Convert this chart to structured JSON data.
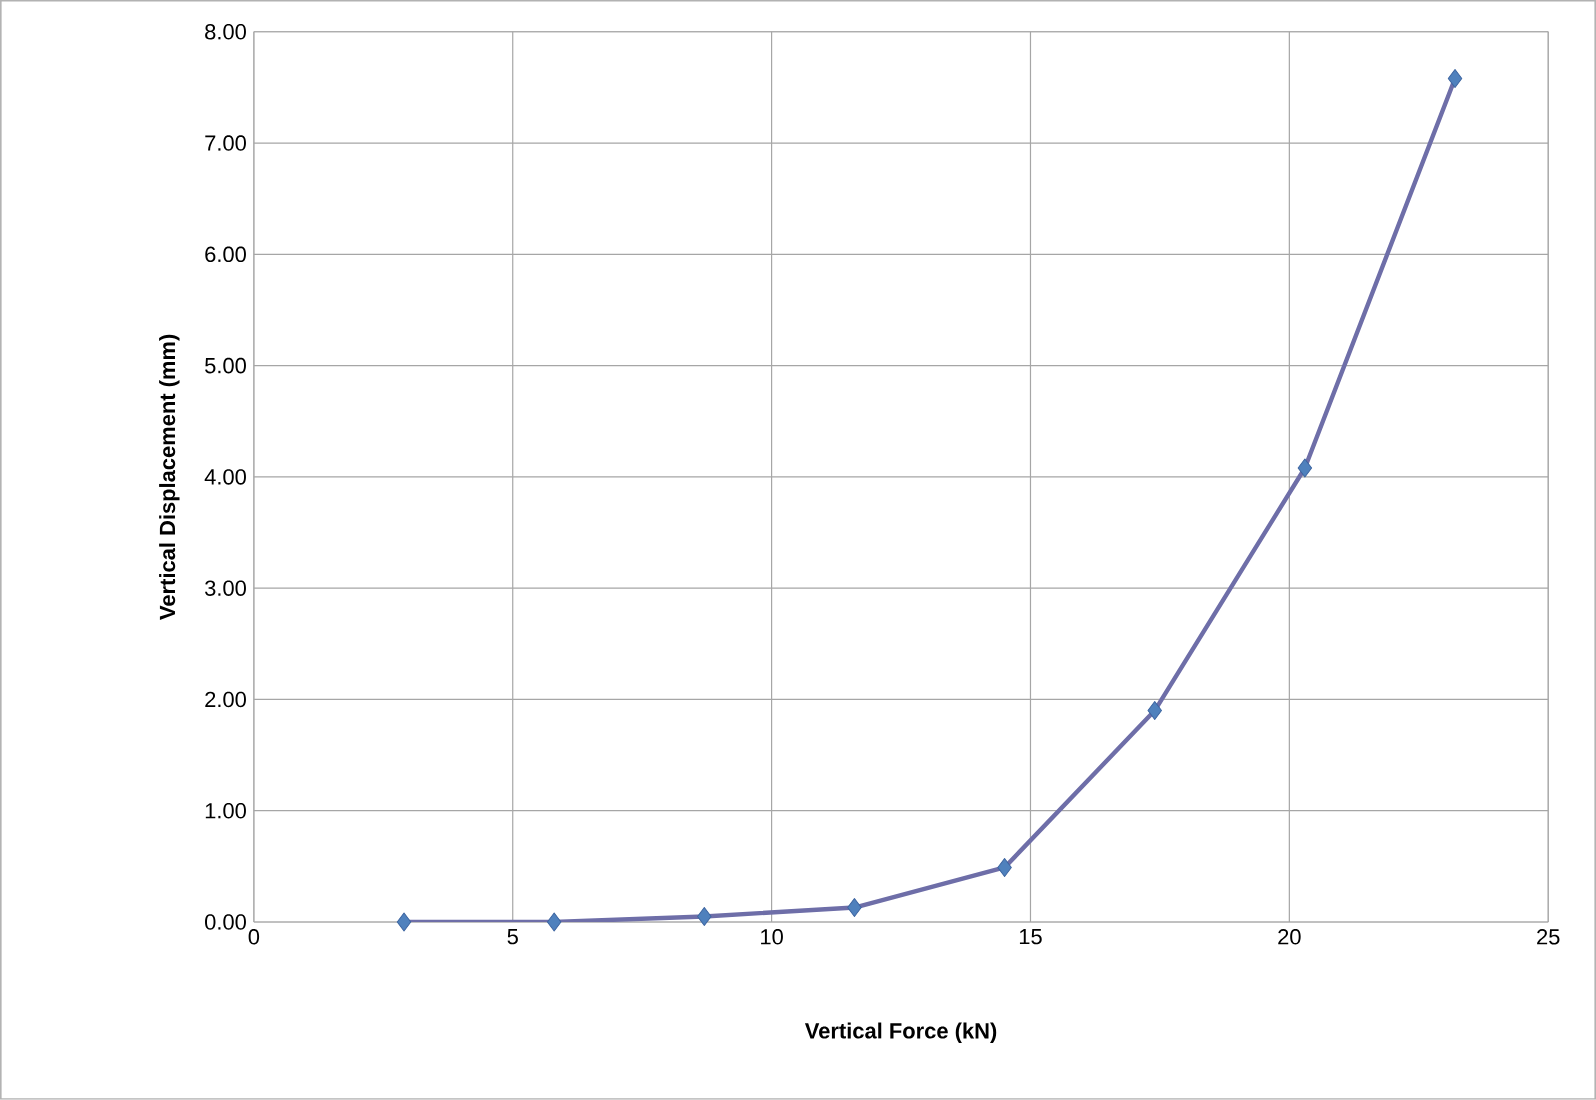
{
  "chart_data": {
    "type": "line",
    "xlabel": "Vertical Force (kN)",
    "ylabel": "Vertical Displacement (mm)",
    "x": [
      2.9,
      5.8,
      8.7,
      11.6,
      14.5,
      17.4,
      20.3,
      23.2
    ],
    "series": [
      {
        "color": "#6e6ea8",
        "values": [
          0.0,
          0.0,
          0.05,
          0.13,
          0.49,
          1.9,
          4.08,
          7.58
        ]
      }
    ],
    "xlim": [
      0,
      25
    ],
    "xticks": [
      0,
      5,
      10,
      15,
      20,
      25
    ],
    "ylim": [
      0,
      8
    ],
    "yticks": [
      {
        "value": 0,
        "label": "0.00"
      },
      {
        "value": 1,
        "label": "1.00"
      },
      {
        "value": 2,
        "label": "2.00"
      },
      {
        "value": 3,
        "label": "3.00"
      },
      {
        "value": 4,
        "label": "4.00"
      },
      {
        "value": 5,
        "label": "5.00"
      },
      {
        "value": 6,
        "label": "6.00"
      },
      {
        "value": 7,
        "label": "7.00"
      },
      {
        "value": 8,
        "label": "8.00"
      }
    ],
    "grid": true,
    "marker": "diamond",
    "line_style": "solid"
  }
}
